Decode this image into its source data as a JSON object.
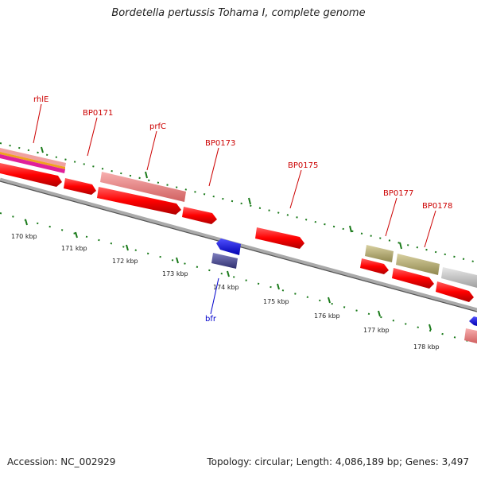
{
  "title": "Bordetella pertussis Tohama I, complete genome",
  "footer": {
    "accession": "Accession: NC_002929",
    "summary": "Topology: circular; Length: 4,086,189 bp; Genes: 3,497"
  },
  "colors": {
    "forward_cds": "#ff0000",
    "reverse_cds": "#0000ff",
    "gene_label_forward": "#cc0000",
    "gene_label_reverse": "#0000cc",
    "tick": "#1a7a1a",
    "backbone": "#888888",
    "rrna_pink": "#f08080",
    "olive": "#b8b070",
    "grey_feature": "#c8c8c8",
    "dark_purple": "#4a4a8a"
  },
  "scale_labels": [
    "170 kbp",
    "171 kbp",
    "172 kbp",
    "173 kbp",
    "174 kbp",
    "175 kbp",
    "176 kbp",
    "177 kbp",
    "178 kbp"
  ],
  "gene_labels": [
    {
      "text": "rhlE",
      "strand": "forward"
    },
    {
      "text": "BP0171",
      "strand": "forward"
    },
    {
      "text": "prfC",
      "strand": "forward"
    },
    {
      "text": "BP0173",
      "strand": "forward"
    },
    {
      "text": "BP0175",
      "strand": "forward"
    },
    {
      "text": "BP0177",
      "strand": "forward"
    },
    {
      "text": "BP0178",
      "strand": "forward"
    },
    {
      "text": "bfr",
      "strand": "reverse"
    }
  ]
}
